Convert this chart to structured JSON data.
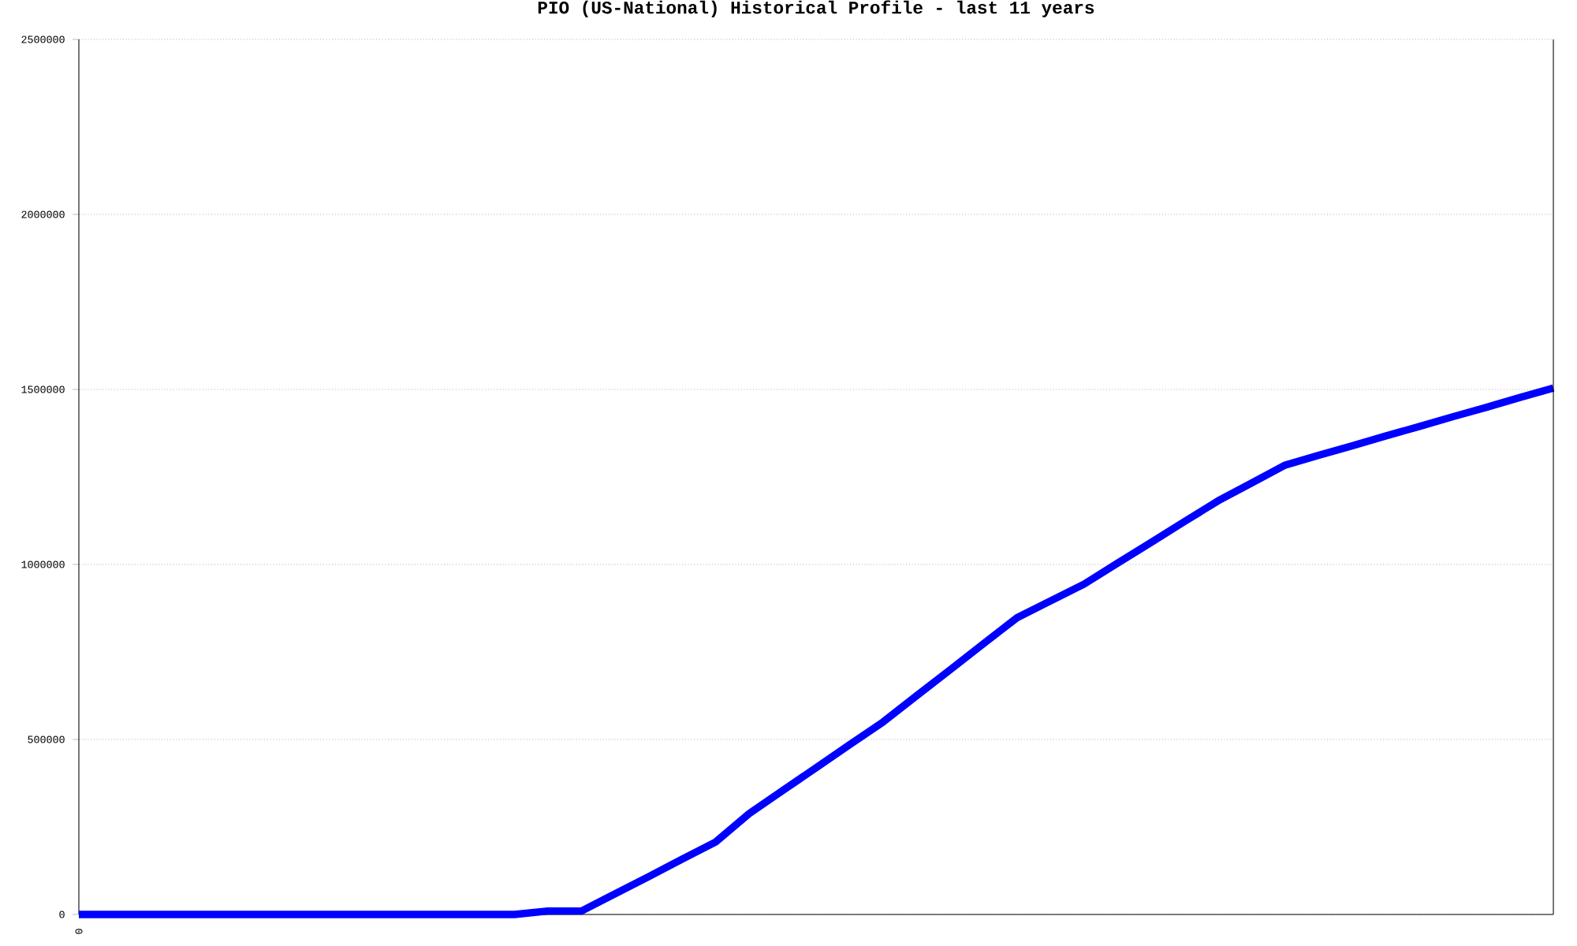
{
  "chart_data": {
    "type": "line",
    "title": "PIO (US-National) Historical Profile - last 11 years",
    "categories": [
      "0",
      null,
      null,
      null,
      null,
      null,
      null,
      null,
      null,
      null,
      null,
      null,
      null,
      null,
      null,
      null,
      null,
      null,
      null,
      null,
      null,
      null,
      null,
      null,
      null,
      null,
      null,
      null,
      null,
      null,
      null,
      null,
      null,
      null,
      null,
      null,
      null,
      null,
      null,
      null,
      null,
      null,
      null,
      null,
      null
    ],
    "series": [
      {
        "color": "#0000ff",
        "values": [
          0,
          0,
          0,
          0,
          0,
          0,
          0,
          0,
          0,
          0,
          0,
          0,
          0,
          0,
          10000,
          10000,
          59000,
          108000,
          158000,
          207000,
          288000,
          354000,
          419000,
          485000,
          550000,
          625000,
          699000,
          774000,
          848000,
          896000,
          944000,
          1004000,
          1063000,
          1123000,
          1182000,
          1233000,
          1284000,
          1312000,
          1339000,
          1367000,
          1394000,
          1422000,
          1449000,
          1477000,
          1504000
        ]
      }
    ],
    "ylim": [
      0,
      2500000
    ],
    "yticks": [
      {
        "value": 0,
        "label": "0"
      },
      {
        "value": 500000,
        "label": "500000"
      },
      {
        "value": 1000000,
        "label": "1000000"
      },
      {
        "value": 1500000,
        "label": "1500000"
      },
      {
        "value": 2000000,
        "label": "2000000"
      },
      {
        "value": 2500000,
        "label": "2500000"
      }
    ],
    "grid": "y",
    "marker": "none",
    "line_style": "solid"
  }
}
